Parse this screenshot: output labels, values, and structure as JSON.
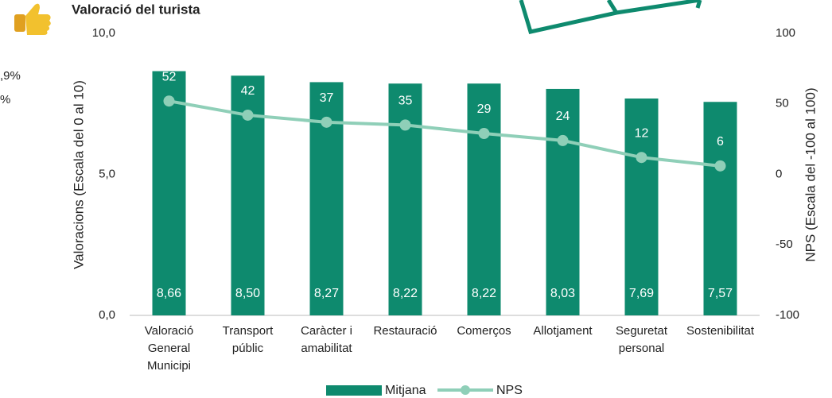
{
  "chart_data": {
    "type": "bar-line",
    "title": "Valoració del turista",
    "side_texts": [
      ",9%",
      "%"
    ],
    "categories": [
      [
        "Valoració",
        "General",
        "Municipi"
      ],
      [
        "Transport",
        "públic"
      ],
      [
        "Caràcter i",
        "amabilitat"
      ],
      [
        "Restauració"
      ],
      [
        "Comerços"
      ],
      [
        "Allotjament"
      ],
      [
        "Seguretat",
        "personal"
      ],
      [
        "Sostenibilitat"
      ]
    ],
    "y_label": "Valoracions (Escala  del 0 al 10)",
    "y2_label": "NPS (Escala  del -100 al 100)",
    "ylim": [
      0,
      10
    ],
    "yticks": [
      {
        "value": 0,
        "label": "0,0"
      },
      {
        "value": 5,
        "label": "5,0"
      },
      {
        "value": 10,
        "label": "10,0"
      }
    ],
    "y2lim": [
      -100,
      100
    ],
    "y2ticks": [
      -100,
      -50,
      0,
      50,
      100
    ],
    "series": [
      {
        "name": "Mitjana",
        "type": "bar",
        "color": "#0e8a6e",
        "values": [
          8.66,
          8.5,
          8.27,
          8.22,
          8.22,
          8.03,
          7.69,
          7.57
        ],
        "value_labels": [
          "8,66",
          "8,50",
          "8,27",
          "8,22",
          "8,22",
          "8,03",
          "7,69",
          "7,57"
        ]
      },
      {
        "name": "NPS",
        "type": "line",
        "axis": "y2",
        "color": "#8fcfb8",
        "values": [
          52,
          42,
          37,
          35,
          29,
          24,
          12,
          6
        ]
      }
    ]
  }
}
